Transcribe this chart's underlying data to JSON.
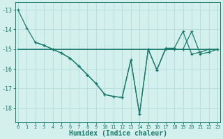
{
  "line1_x": [
    0,
    1,
    2,
    3,
    4,
    5,
    6,
    7,
    8,
    9,
    10,
    11,
    12,
    13,
    14,
    15,
    16,
    17,
    18,
    19,
    20,
    21,
    22,
    23
  ],
  "line1_y": [
    -13.0,
    -13.9,
    -14.65,
    -14.8,
    -15.0,
    -15.2,
    -15.45,
    -15.85,
    -16.3,
    -16.75,
    -17.3,
    -17.4,
    -17.45,
    -15.55,
    -18.3,
    -15.0,
    -16.05,
    -15.0,
    -15.0,
    -15.0,
    -14.1,
    -15.25,
    -15.15,
    -15.0
  ],
  "line2_x": [
    0,
    1,
    2,
    3,
    4,
    5,
    6,
    7,
    8,
    9,
    10,
    11,
    12,
    13,
    14,
    15,
    16,
    17,
    18,
    19,
    20,
    21,
    22,
    23
  ],
  "line2_y": [
    -15.0,
    -15.0,
    -15.0,
    -15.0,
    -15.0,
    -15.0,
    -15.0,
    -15.0,
    -15.0,
    -15.0,
    -15.0,
    -15.0,
    -15.0,
    -15.0,
    -15.0,
    -15.0,
    -15.0,
    -15.0,
    -15.0,
    -15.0,
    -15.0,
    -15.0,
    -15.0,
    -15.0
  ],
  "line3_x": [
    2,
    3,
    4,
    5,
    6,
    7,
    8,
    9,
    10,
    11,
    12,
    13,
    14,
    15,
    16,
    17,
    18,
    19,
    20,
    21,
    22,
    23
  ],
  "line3_y": [
    -14.65,
    -14.8,
    -15.0,
    -15.2,
    -15.45,
    -15.85,
    -16.3,
    -16.75,
    -17.3,
    -17.4,
    -17.45,
    -15.55,
    -18.3,
    -15.0,
    -16.05,
    -14.95,
    -14.95,
    -14.1,
    -15.25,
    -15.15,
    -15.0,
    -15.0
  ],
  "color": "#1a7a6e",
  "bg_color": "#d4f0ec",
  "grid_color": "#b8deda",
  "xlabel": "Humidex (Indice chaleur)",
  "ylim": [
    -18.7,
    -12.6
  ],
  "xlim": [
    -0.3,
    23.3
  ],
  "yticks": [
    -18,
    -17,
    -16,
    -15,
    -14,
    -13
  ],
  "xticks": [
    0,
    1,
    2,
    3,
    4,
    5,
    6,
    7,
    8,
    9,
    10,
    11,
    12,
    13,
    14,
    15,
    16,
    17,
    18,
    19,
    20,
    21,
    22,
    23
  ]
}
